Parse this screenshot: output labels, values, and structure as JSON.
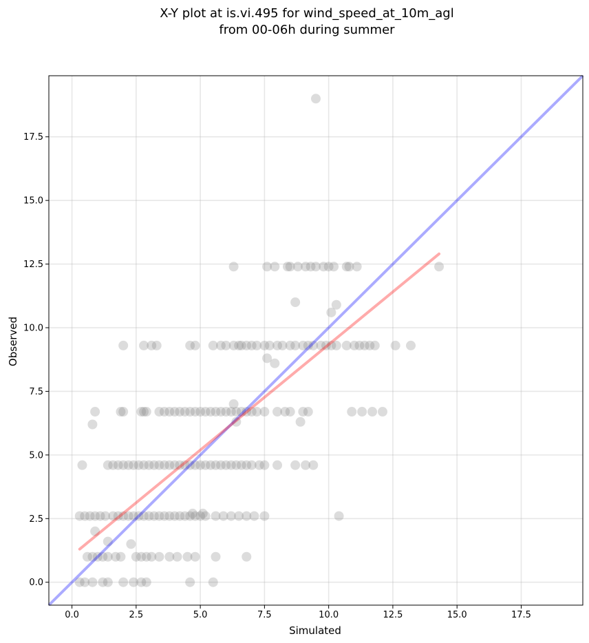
{
  "chart_data": {
    "type": "scatter",
    "title_line1": "X-Y plot at is.vi.495 for wind_speed_at_10m_agl",
    "title_line2": "from 00-06h during summer",
    "xlabel": "Simulated",
    "ylabel": "Observed",
    "xlim": [
      -0.9,
      19.9
    ],
    "ylim": [
      -0.9,
      19.9
    ],
    "xticks": [
      0.0,
      2.5,
      5.0,
      7.5,
      10.0,
      12.5,
      15.0,
      17.5
    ],
    "yticks": [
      0.0,
      2.5,
      5.0,
      7.5,
      10.0,
      12.5,
      15.0,
      17.5
    ],
    "xtick_labels": [
      "0.0",
      "2.5",
      "5.0",
      "7.5",
      "10.0",
      "12.5",
      "15.0",
      "17.5"
    ],
    "ytick_labels": [
      "0.0",
      "2.5",
      "5.0",
      "7.5",
      "10.0",
      "12.5",
      "15.0",
      "17.5"
    ],
    "grid": true,
    "point_color": "#808080",
    "identity_line": {
      "color": "#0000ff",
      "x": [
        -0.9,
        19.9
      ],
      "y": [
        -0.9,
        19.9
      ]
    },
    "fit_line": {
      "color": "#ff0000",
      "x": [
        0.3,
        14.3
      ],
      "y": [
        1.3,
        12.9
      ]
    },
    "points": [
      [
        9.5,
        19.0
      ],
      [
        6.3,
        12.4
      ],
      [
        7.6,
        12.4
      ],
      [
        7.9,
        12.4
      ],
      [
        8.4,
        12.4
      ],
      [
        8.5,
        12.4
      ],
      [
        8.8,
        12.4
      ],
      [
        9.1,
        12.4
      ],
      [
        9.3,
        12.4
      ],
      [
        9.5,
        12.4
      ],
      [
        9.8,
        12.4
      ],
      [
        10.0,
        12.4
      ],
      [
        10.2,
        12.4
      ],
      [
        10.7,
        12.4
      ],
      [
        10.8,
        12.4
      ],
      [
        11.1,
        12.4
      ],
      [
        14.3,
        12.4
      ],
      [
        8.7,
        11.0
      ],
      [
        10.3,
        10.9
      ],
      [
        10.1,
        10.6
      ],
      [
        2.0,
        9.3
      ],
      [
        2.8,
        9.3
      ],
      [
        3.1,
        9.3
      ],
      [
        3.3,
        9.3
      ],
      [
        4.6,
        9.3
      ],
      [
        4.8,
        9.3
      ],
      [
        5.5,
        9.3
      ],
      [
        5.8,
        9.3
      ],
      [
        6.0,
        9.3
      ],
      [
        6.3,
        9.3
      ],
      [
        6.5,
        9.3
      ],
      [
        6.6,
        9.3
      ],
      [
        6.8,
        9.3
      ],
      [
        7.0,
        9.3
      ],
      [
        7.2,
        9.3
      ],
      [
        7.5,
        9.3
      ],
      [
        7.7,
        9.3
      ],
      [
        8.0,
        9.3
      ],
      [
        8.2,
        9.3
      ],
      [
        8.5,
        9.3
      ],
      [
        8.7,
        9.3
      ],
      [
        9.0,
        9.3
      ],
      [
        9.2,
        9.3
      ],
      [
        9.4,
        9.3
      ],
      [
        9.7,
        9.3
      ],
      [
        9.9,
        9.3
      ],
      [
        10.1,
        9.3
      ],
      [
        10.3,
        9.3
      ],
      [
        10.7,
        9.3
      ],
      [
        11.0,
        9.3
      ],
      [
        11.2,
        9.3
      ],
      [
        11.4,
        9.3
      ],
      [
        11.6,
        9.3
      ],
      [
        11.8,
        9.3
      ],
      [
        12.6,
        9.3
      ],
      [
        13.2,
        9.3
      ],
      [
        7.6,
        8.8
      ],
      [
        7.9,
        8.6
      ],
      [
        6.3,
        7.0
      ],
      [
        0.9,
        6.7
      ],
      [
        1.9,
        6.7
      ],
      [
        2.0,
        6.7
      ],
      [
        2.7,
        6.7
      ],
      [
        2.8,
        6.7
      ],
      [
        2.9,
        6.7
      ],
      [
        3.4,
        6.7
      ],
      [
        3.6,
        6.7
      ],
      [
        3.8,
        6.7
      ],
      [
        4.0,
        6.7
      ],
      [
        4.2,
        6.7
      ],
      [
        4.4,
        6.7
      ],
      [
        4.6,
        6.7
      ],
      [
        4.8,
        6.7
      ],
      [
        5.0,
        6.7
      ],
      [
        5.2,
        6.7
      ],
      [
        5.4,
        6.7
      ],
      [
        5.6,
        6.7
      ],
      [
        5.8,
        6.7
      ],
      [
        6.0,
        6.7
      ],
      [
        6.2,
        6.7
      ],
      [
        6.4,
        6.7
      ],
      [
        6.6,
        6.7
      ],
      [
        6.8,
        6.7
      ],
      [
        7.0,
        6.7
      ],
      [
        7.2,
        6.7
      ],
      [
        7.5,
        6.7
      ],
      [
        8.0,
        6.7
      ],
      [
        8.3,
        6.7
      ],
      [
        8.5,
        6.7
      ],
      [
        9.0,
        6.7
      ],
      [
        9.2,
        6.7
      ],
      [
        10.9,
        6.7
      ],
      [
        11.3,
        6.7
      ],
      [
        11.7,
        6.7
      ],
      [
        12.1,
        6.7
      ],
      [
        0.8,
        6.2
      ],
      [
        6.4,
        6.3
      ],
      [
        8.9,
        6.3
      ],
      [
        0.4,
        4.6
      ],
      [
        1.4,
        4.6
      ],
      [
        1.6,
        4.6
      ],
      [
        1.8,
        4.6
      ],
      [
        2.0,
        4.6
      ],
      [
        2.2,
        4.6
      ],
      [
        2.4,
        4.6
      ],
      [
        2.6,
        4.6
      ],
      [
        2.8,
        4.6
      ],
      [
        3.0,
        4.6
      ],
      [
        3.2,
        4.6
      ],
      [
        3.4,
        4.6
      ],
      [
        3.6,
        4.6
      ],
      [
        3.8,
        4.6
      ],
      [
        4.0,
        4.6
      ],
      [
        4.2,
        4.6
      ],
      [
        4.4,
        4.6
      ],
      [
        4.6,
        4.6
      ],
      [
        4.8,
        4.6
      ],
      [
        5.0,
        4.6
      ],
      [
        5.2,
        4.6
      ],
      [
        5.4,
        4.6
      ],
      [
        5.6,
        4.6
      ],
      [
        5.8,
        4.6
      ],
      [
        6.0,
        4.6
      ],
      [
        6.2,
        4.6
      ],
      [
        6.4,
        4.6
      ],
      [
        6.6,
        4.6
      ],
      [
        6.8,
        4.6
      ],
      [
        7.0,
        4.6
      ],
      [
        7.3,
        4.6
      ],
      [
        7.5,
        4.6
      ],
      [
        8.0,
        4.6
      ],
      [
        8.7,
        4.6
      ],
      [
        9.1,
        4.6
      ],
      [
        9.4,
        4.6
      ],
      [
        0.3,
        2.6
      ],
      [
        0.5,
        2.6
      ],
      [
        0.7,
        2.6
      ],
      [
        0.9,
        2.6
      ],
      [
        1.1,
        2.6
      ],
      [
        1.3,
        2.6
      ],
      [
        1.6,
        2.6
      ],
      [
        1.8,
        2.6
      ],
      [
        2.0,
        2.6
      ],
      [
        2.2,
        2.6
      ],
      [
        2.4,
        2.6
      ],
      [
        2.6,
        2.6
      ],
      [
        2.8,
        2.6
      ],
      [
        3.0,
        2.6
      ],
      [
        3.2,
        2.6
      ],
      [
        3.4,
        2.6
      ],
      [
        3.6,
        2.6
      ],
      [
        3.8,
        2.6
      ],
      [
        4.0,
        2.6
      ],
      [
        4.2,
        2.6
      ],
      [
        4.4,
        2.6
      ],
      [
        4.6,
        2.6
      ],
      [
        4.8,
        2.6
      ],
      [
        5.0,
        2.6
      ],
      [
        5.2,
        2.6
      ],
      [
        5.6,
        2.6
      ],
      [
        5.9,
        2.6
      ],
      [
        6.2,
        2.6
      ],
      [
        6.5,
        2.6
      ],
      [
        6.8,
        2.6
      ],
      [
        7.1,
        2.6
      ],
      [
        7.5,
        2.6
      ],
      [
        10.4,
        2.6
      ],
      [
        4.7,
        2.7
      ],
      [
        5.1,
        2.7
      ],
      [
        0.9,
        2.0
      ],
      [
        1.4,
        1.6
      ],
      [
        2.3,
        1.5
      ],
      [
        0.6,
        1.0
      ],
      [
        0.8,
        1.0
      ],
      [
        1.0,
        1.0
      ],
      [
        1.2,
        1.0
      ],
      [
        1.4,
        1.0
      ],
      [
        1.7,
        1.0
      ],
      [
        1.9,
        1.0
      ],
      [
        2.5,
        1.0
      ],
      [
        2.7,
        1.0
      ],
      [
        2.9,
        1.0
      ],
      [
        3.1,
        1.0
      ],
      [
        3.4,
        1.0
      ],
      [
        3.8,
        1.0
      ],
      [
        4.1,
        1.0
      ],
      [
        4.5,
        1.0
      ],
      [
        4.8,
        1.0
      ],
      [
        5.6,
        1.0
      ],
      [
        6.8,
        1.0
      ],
      [
        0.3,
        0.0
      ],
      [
        0.5,
        0.0
      ],
      [
        0.8,
        0.0
      ],
      [
        1.2,
        0.0
      ],
      [
        1.4,
        0.0
      ],
      [
        2.0,
        0.0
      ],
      [
        2.4,
        0.0
      ],
      [
        2.7,
        0.0
      ],
      [
        2.9,
        0.0
      ],
      [
        4.6,
        0.0
      ],
      [
        5.5,
        0.0
      ]
    ]
  }
}
